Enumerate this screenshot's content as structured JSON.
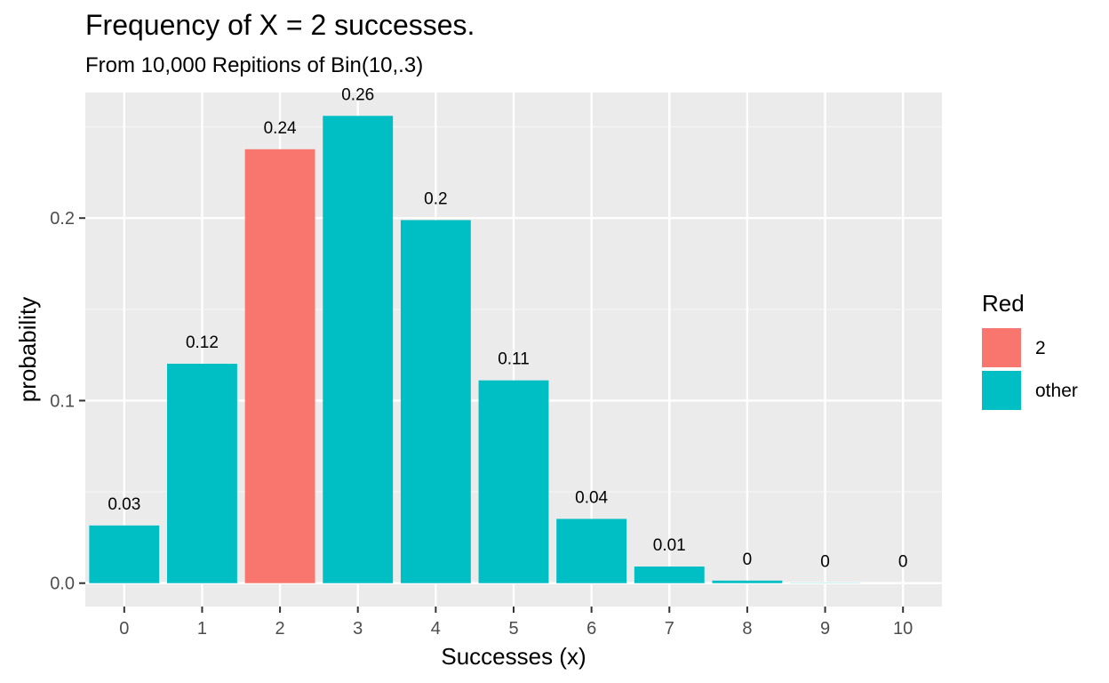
{
  "chart_data": {
    "type": "bar",
    "title": "Frequency of X = 2 successes.",
    "subtitle": "From 10,000 Repitions of Bin(10,.3)",
    "xlabel": "Successes (x)",
    "ylabel": "probability",
    "categories": [
      "0",
      "1",
      "2",
      "3",
      "4",
      "5",
      "6",
      "7",
      "8",
      "9",
      "10"
    ],
    "values": [
      0.0316,
      0.1202,
      0.2377,
      0.256,
      0.1989,
      0.1111,
      0.0352,
      0.0091,
      0.0014,
      0.0001,
      0.0
    ],
    "data_labels": [
      "0.03",
      "0.12",
      "0.24",
      "0.26",
      "0.2",
      "0.11",
      "0.04",
      "0.01",
      "0",
      "0",
      "0"
    ],
    "groups": [
      "other",
      "other",
      "2",
      "other",
      "other",
      "other",
      "other",
      "other",
      "other",
      "other",
      "other"
    ],
    "ylim": [
      -0.0128,
      0.2688
    ],
    "yticks": [
      0.0,
      0.1,
      0.2
    ],
    "ytick_labels": [
      "0.0",
      "0.1",
      "0.2"
    ],
    "grid": true,
    "legend": {
      "title": "Red",
      "position": "right",
      "items": [
        {
          "key": "2",
          "label": "2",
          "color": "#F8766D"
        },
        {
          "key": "other",
          "label": "other",
          "color": "#00BFC4"
        }
      ]
    },
    "colors": {
      "panel": "#EBEBEB",
      "grid_major": "#FFFFFF",
      "grid_minor": "#F5F5F5",
      "tick": "#333333"
    }
  }
}
